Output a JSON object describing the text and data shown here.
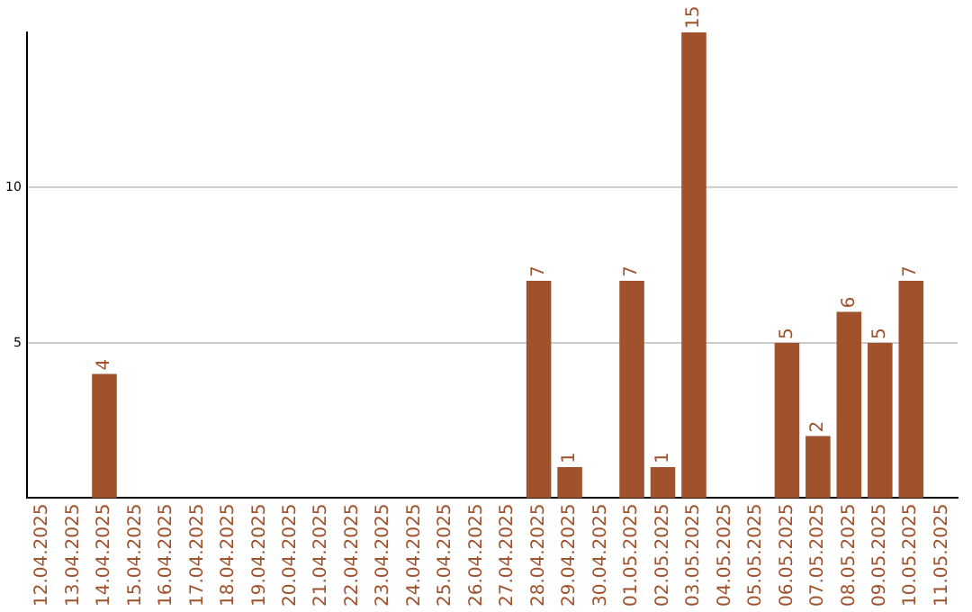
{
  "chart_data": {
    "type": "bar",
    "categories": [
      "12.04.2025",
      "13.04.2025",
      "14.04.2025",
      "15.04.2025",
      "16.04.2025",
      "17.04.2025",
      "18.04.2025",
      "19.04.2025",
      "20.04.2025",
      "21.04.2025",
      "22.04.2025",
      "23.04.2025",
      "24.04.2025",
      "25.04.2025",
      "26.04.2025",
      "27.04.2025",
      "28.04.2025",
      "29.04.2025",
      "30.04.2025",
      "01.05.2025",
      "02.05.2025",
      "03.05.2025",
      "04.05.2025",
      "05.05.2025",
      "06.05.2025",
      "07.05.2025",
      "08.05.2025",
      "09.05.2025",
      "10.05.2025",
      "11.05.2025"
    ],
    "values": [
      null,
      null,
      4,
      null,
      null,
      null,
      null,
      null,
      null,
      null,
      null,
      null,
      null,
      null,
      null,
      null,
      7,
      1,
      null,
      7,
      1,
      15,
      null,
      null,
      5,
      2,
      6,
      5,
      7,
      null
    ],
    "color": "#a0522d",
    "ylim": [
      0,
      15
    ],
    "yticks": [
      5,
      10
    ],
    "grid": "y",
    "data_labels": true,
    "legend": false
  }
}
